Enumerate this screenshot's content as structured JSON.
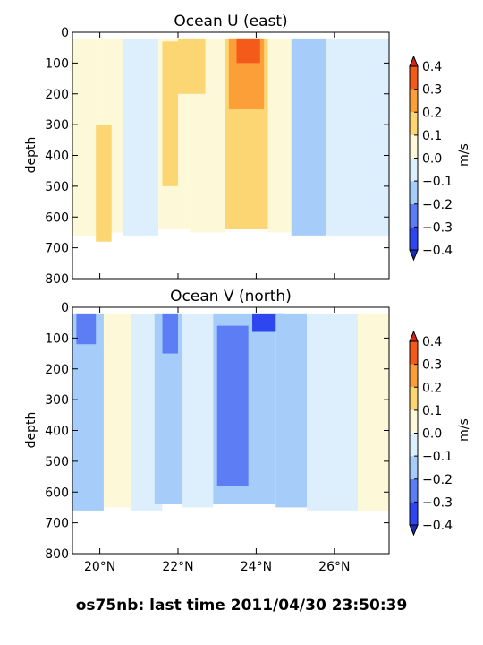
{
  "suptitle": "os75nb: last time 2011/04/30 23:50:39",
  "chart_data": [
    {
      "type": "heatmap",
      "title": "Ocean U (east)",
      "ylabel": "depth",
      "xlabel": "",
      "x_range": [
        19.3,
        27.4
      ],
      "ylim": [
        800,
        0
      ],
      "x_ticks": [
        20,
        22,
        24,
        26
      ],
      "x_tick_labels": [
        "20°N",
        "22°N",
        "24°N",
        "26°N"
      ],
      "x_tick_labels_visible": false,
      "y_ticks": [
        0,
        100,
        200,
        300,
        400,
        500,
        600,
        700,
        800
      ],
      "colorbar": {
        "label": "m/s",
        "ticks": [
          0.4,
          0.3,
          0.2,
          0.1,
          0.0,
          -0.1,
          -0.2,
          -0.3,
          -0.4
        ],
        "tick_labels": [
          "0.4",
          "0.3",
          "0.2",
          "0.1",
          "0.0",
          "−0.1",
          "−0.2",
          "−0.3",
          "−0.4"
        ]
      },
      "bands": [
        {
          "lat": [
            19.3,
            20.0
          ],
          "depth": [
            20,
            660
          ],
          "value": 0.02
        },
        {
          "lat": [
            20.0,
            20.6
          ],
          "depth": [
            20,
            650
          ],
          "value": 0.08
        },
        {
          "lat": [
            19.9,
            20.3
          ],
          "depth": [
            300,
            680
          ],
          "value": 0.15
        },
        {
          "lat": [
            20.6,
            21.5
          ],
          "depth": [
            20,
            660
          ],
          "value": -0.05
        },
        {
          "lat": [
            21.5,
            22.3
          ],
          "depth": [
            20,
            640
          ],
          "value": 0.08
        },
        {
          "lat": [
            21.6,
            22.0
          ],
          "depth": [
            30,
            500
          ],
          "value": 0.15
        },
        {
          "lat": [
            22.3,
            23.2
          ],
          "depth": [
            20,
            650
          ],
          "value": 0.06
        },
        {
          "lat": [
            22.0,
            22.7
          ],
          "depth": [
            20,
            200
          ],
          "value": 0.18
        },
        {
          "lat": [
            23.2,
            24.3
          ],
          "depth": [
            20,
            640
          ],
          "value": 0.15
        },
        {
          "lat": [
            23.3,
            24.2
          ],
          "depth": [
            20,
            250
          ],
          "value": 0.25
        },
        {
          "lat": [
            23.5,
            24.1
          ],
          "depth": [
            20,
            100
          ],
          "value": 0.35
        },
        {
          "lat": [
            24.3,
            24.9
          ],
          "depth": [
            20,
            650
          ],
          "value": 0.05
        },
        {
          "lat": [
            24.9,
            25.8
          ],
          "depth": [
            20,
            660
          ],
          "value": -0.12
        },
        {
          "lat": [
            25.8,
            27.4
          ],
          "depth": [
            20,
            660
          ],
          "value": -0.05
        }
      ]
    },
    {
      "type": "heatmap",
      "title": "Ocean V (north)",
      "ylabel": "depth",
      "xlabel": "",
      "x_range": [
        19.3,
        27.4
      ],
      "ylim": [
        800,
        0
      ],
      "x_ticks": [
        20,
        22,
        24,
        26
      ],
      "x_tick_labels": [
        "20°N",
        "22°N",
        "24°N",
        "26°N"
      ],
      "y_ticks": [
        0,
        100,
        200,
        300,
        400,
        500,
        600,
        700,
        800
      ],
      "colorbar": {
        "label": "m/s",
        "ticks": [
          0.4,
          0.3,
          0.2,
          0.1,
          0.0,
          -0.1,
          -0.2,
          -0.3,
          -0.4
        ],
        "tick_labels": [
          "0.4",
          "0.3",
          "0.2",
          "0.1",
          "0.0",
          "−0.1",
          "−0.2",
          "−0.3",
          "−0.4"
        ]
      },
      "bands": [
        {
          "lat": [
            19.3,
            20.1
          ],
          "depth": [
            20,
            660
          ],
          "value": -0.12
        },
        {
          "lat": [
            19.4,
            19.9
          ],
          "depth": [
            20,
            120
          ],
          "value": -0.25
        },
        {
          "lat": [
            20.1,
            20.8
          ],
          "depth": [
            20,
            650
          ],
          "value": 0.02
        },
        {
          "lat": [
            20.8,
            21.6
          ],
          "depth": [
            20,
            660
          ],
          "value": -0.08
        },
        {
          "lat": [
            21.4,
            22.1
          ],
          "depth": [
            20,
            640
          ],
          "value": -0.18
        },
        {
          "lat": [
            21.6,
            22.0
          ],
          "depth": [
            20,
            150
          ],
          "value": -0.3
        },
        {
          "lat": [
            22.1,
            22.9
          ],
          "depth": [
            20,
            650
          ],
          "value": -0.05
        },
        {
          "lat": [
            22.9,
            24.5
          ],
          "depth": [
            20,
            640
          ],
          "value": -0.2
        },
        {
          "lat": [
            23.0,
            23.8
          ],
          "depth": [
            60,
            580
          ],
          "value": -0.28
        },
        {
          "lat": [
            23.9,
            24.7
          ],
          "depth": [
            20,
            80
          ],
          "value": -0.32
        },
        {
          "lat": [
            24.5,
            25.3
          ],
          "depth": [
            20,
            650
          ],
          "value": -0.13
        },
        {
          "lat": [
            25.3,
            26.6
          ],
          "depth": [
            20,
            660
          ],
          "value": -0.06
        },
        {
          "lat": [
            26.6,
            27.4
          ],
          "depth": [
            20,
            660
          ],
          "value": 0.03
        }
      ]
    }
  ]
}
